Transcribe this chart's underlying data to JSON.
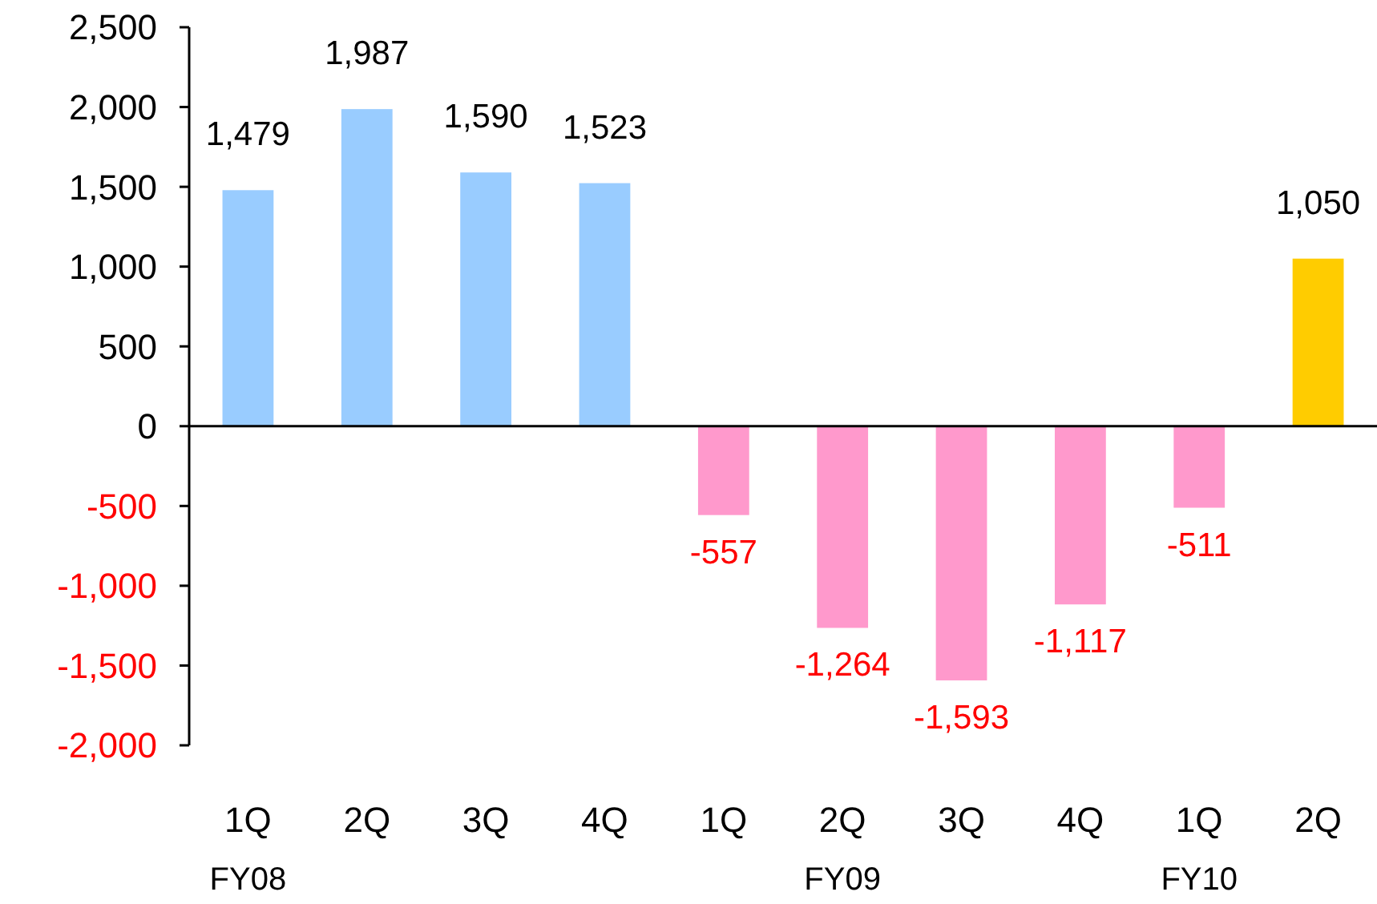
{
  "chart_data": {
    "type": "bar",
    "categories": [
      "1Q\nFY08",
      "2Q",
      "3Q",
      "4Q",
      "1Q",
      "2Q\nFY09",
      "3Q",
      "4Q",
      "1Q\nFY10",
      "2Q"
    ],
    "values": [
      1479,
      1987,
      1590,
      1523,
      -557,
      -1264,
      -1593,
      -1117,
      -511,
      1050
    ],
    "colors": [
      "#99ccff",
      "#99ccff",
      "#99ccff",
      "#99ccff",
      "#ff99cc",
      "#ff99cc",
      "#ff99cc",
      "#ff99cc",
      "#ff99cc",
      "#ffcc00"
    ],
    "ylim": [
      -2000,
      2500
    ],
    "yticks": [
      {
        "value": -2000,
        "label": "-2,000"
      },
      {
        "value": -1500,
        "label": "-1,500"
      },
      {
        "value": -1000,
        "label": "-1,000"
      },
      {
        "value": -500,
        "label": "-500"
      },
      0,
      {
        "value": 500,
        "label": "500"
      },
      {
        "value": 1000,
        "label": "1,000"
      },
      {
        "value": 1500,
        "label": "1,500"
      },
      {
        "value": 2000,
        "label": "2,000"
      },
      {
        "value": 2500,
        "label": "2,500"
      }
    ],
    "value_labels": [
      "1,479",
      "1,987",
      "1,590",
      "1,523",
      "-557",
      "-1,264",
      "-1,593",
      "-1,117",
      "-511",
      "1,050"
    ]
  }
}
